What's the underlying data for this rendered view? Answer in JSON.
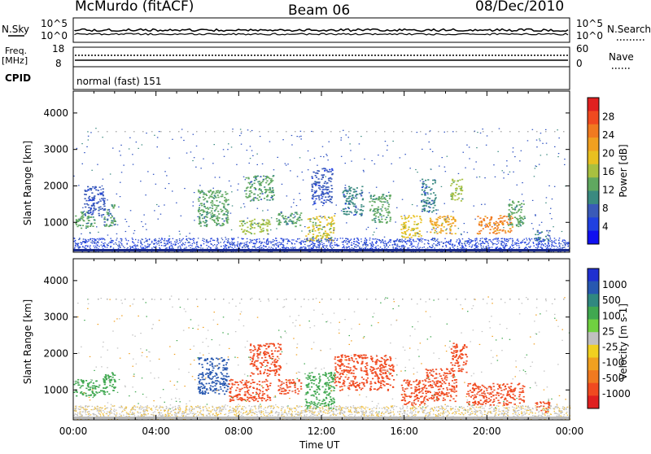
{
  "header": {
    "station": "McMurdo (fitACF)",
    "beam": "Beam 06",
    "date": "08/Dec/2010"
  },
  "noise_panel": {
    "left_label": "N.Sky",
    "right_label": "N.Search",
    "ticks_top": "10^5",
    "ticks_bottom": "10^0"
  },
  "freq_panel": {
    "left_label_1": "Freq.",
    "left_label_2": "[MHz]",
    "left_ticks": [
      "18",
      "8"
    ],
    "right_label": "Nave",
    "right_ticks": [
      "60",
      "0"
    ]
  },
  "cpid_panel": {
    "label": "CPID",
    "value": "normal (fast) 151"
  },
  "power_panel": {
    "ylabel": "Slant Range [km]",
    "colorbar_label": "Power [dB]",
    "colorbar_ticks": [
      "28",
      "24",
      "20",
      "16",
      "12",
      "8",
      "4"
    ],
    "colorbar_colors": [
      "#e02020",
      "#f04a20",
      "#f07a20",
      "#f0a020",
      "#e8c020",
      "#a8c040",
      "#60a860",
      "#3a8a80",
      "#3a5ab8",
      "#2040e0",
      "#1010f0"
    ]
  },
  "velocity_panel": {
    "ylabel": "Slant Range [km]",
    "colorbar_label": "Velocity [m s-1]",
    "colorbar_ticks": [
      "1000",
      "500",
      "100",
      "25",
      "-25",
      "-100",
      "-500",
      "-1000"
    ],
    "colorbar_colors": [
      "#2030d0",
      "#2858b0",
      "#308880",
      "#40a850",
      "#70d040",
      "#c0c0c0",
      "#f0d020",
      "#f0a020",
      "#f07a20",
      "#f04a20",
      "#e02020"
    ]
  },
  "x_axis": {
    "label": "Time UT",
    "ticks": [
      "00:00",
      "04:00",
      "08:00",
      "12:00",
      "16:00",
      "20:00",
      "00:00"
    ]
  },
  "chart_data": [
    {
      "type": "heatmap",
      "title": "Power",
      "xlabel": "Time UT",
      "ylabel": "Slant Range [km]",
      "ylim": [
        180,
        4600
      ],
      "x_range_hours": [
        0,
        24
      ],
      "yticks": [
        1000,
        2000,
        3000,
        4000
      ],
      "colorbar": {
        "label": "Power [dB]",
        "range": [
          0,
          32
        ],
        "ticks": [
          4,
          8,
          12,
          16,
          20,
          24,
          28
        ]
      },
      "patches": [
        {
          "t": [
            0.0,
            1.0
          ],
          "r": [
            850,
            1300
          ],
          "v": 14
        },
        {
          "t": [
            0.5,
            1.5
          ],
          "r": [
            1200,
            2000
          ],
          "v": 8
        },
        {
          "t": [
            1.4,
            2.0
          ],
          "r": [
            900,
            1500
          ],
          "v": 12
        },
        {
          "t": [
            6.0,
            7.5
          ],
          "r": [
            900,
            1900
          ],
          "v": 14
        },
        {
          "t": [
            8.0,
            9.5
          ],
          "r": [
            700,
            1100
          ],
          "v": 16
        },
        {
          "t": [
            8.3,
            9.7
          ],
          "r": [
            1600,
            2300
          ],
          "v": 12
        },
        {
          "t": [
            9.8,
            11.0
          ],
          "r": [
            900,
            1300
          ],
          "v": 12
        },
        {
          "t": [
            11.2,
            12.6
          ],
          "r": [
            500,
            1200
          ],
          "v": 18
        },
        {
          "t": [
            11.5,
            12.5
          ],
          "r": [
            1500,
            2500
          ],
          "v": 8
        },
        {
          "t": [
            13.0,
            14.0
          ],
          "r": [
            1200,
            2000
          ],
          "v": 10
        },
        {
          "t": [
            14.3,
            15.3
          ],
          "r": [
            1000,
            1800
          ],
          "v": 14
        },
        {
          "t": [
            15.8,
            16.8
          ],
          "r": [
            600,
            1200
          ],
          "v": 20
        },
        {
          "t": [
            16.8,
            17.5
          ],
          "r": [
            1300,
            2200
          ],
          "v": 10
        },
        {
          "t": [
            17.2,
            18.5
          ],
          "r": [
            700,
            1200
          ],
          "v": 22
        },
        {
          "t": [
            18.2,
            18.8
          ],
          "r": [
            1600,
            2200
          ],
          "v": 16
        },
        {
          "t": [
            19.5,
            21.2
          ],
          "r": [
            700,
            1200
          ],
          "v": 26
        },
        {
          "t": [
            21.0,
            21.8
          ],
          "r": [
            900,
            1600
          ],
          "v": 14
        },
        {
          "t": [
            22.3,
            23.0
          ],
          "r": [
            500,
            800
          ],
          "v": 10
        }
      ]
    },
    {
      "type": "heatmap",
      "title": "Velocity",
      "xlabel": "Time UT",
      "ylabel": "Slant Range [km]",
      "ylim": [
        180,
        4600
      ],
      "x_range_hours": [
        0,
        24
      ],
      "yticks": [
        1000,
        2000,
        3000,
        4000
      ],
      "colorbar": {
        "label": "Velocity [m s-1]",
        "ticks": [
          1000,
          500,
          100,
          25,
          -25,
          -100,
          -500,
          -1000
        ]
      },
      "patches": [
        {
          "t": [
            0.0,
            1.5
          ],
          "r": [
            850,
            1300
          ],
          "v": 100
        },
        {
          "t": [
            1.4,
            2.0
          ],
          "r": [
            900,
            1500
          ],
          "v": 100
        },
        {
          "t": [
            6.0,
            7.5
          ],
          "r": [
            900,
            1900
          ],
          "v": 500
        },
        {
          "t": [
            7.5,
            9.5
          ],
          "r": [
            700,
            1300
          ],
          "v": -500
        },
        {
          "t": [
            8.5,
            10.0
          ],
          "r": [
            1400,
            2300
          ],
          "v": -500
        },
        {
          "t": [
            9.8,
            11.0
          ],
          "r": [
            900,
            1300
          ],
          "v": -500
        },
        {
          "t": [
            11.2,
            12.6
          ],
          "r": [
            500,
            1500
          ],
          "v": 100
        },
        {
          "t": [
            12.6,
            14.2
          ],
          "r": [
            1000,
            2000
          ],
          "v": -500
        },
        {
          "t": [
            14.3,
            15.5
          ],
          "r": [
            1000,
            2000
          ],
          "v": -500
        },
        {
          "t": [
            15.8,
            17.0
          ],
          "r": [
            600,
            1300
          ],
          "v": -500
        },
        {
          "t": [
            17.0,
            18.5
          ],
          "r": [
            700,
            1600
          ],
          "v": -500
        },
        {
          "t": [
            18.2,
            19.0
          ],
          "r": [
            1500,
            2300
          ],
          "v": -500
        },
        {
          "t": [
            19.0,
            21.8
          ],
          "r": [
            600,
            1200
          ],
          "v": -500
        },
        {
          "t": [
            22.3,
            23.0
          ],
          "r": [
            400,
            700
          ],
          "v": -500
        }
      ]
    }
  ]
}
